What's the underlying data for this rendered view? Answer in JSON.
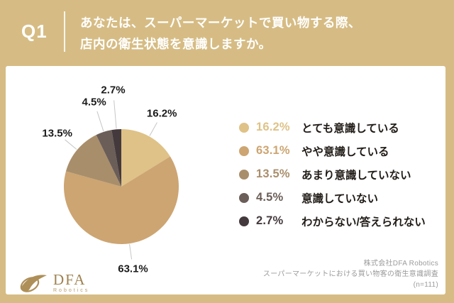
{
  "header": {
    "question_number": "Q1",
    "question_line1": "あなたは、スーパーマーケットで買い物する際、",
    "question_line2": "店内の衛生状態を意識しますか。"
  },
  "chart_data": {
    "type": "pie",
    "title": "あなたは、スーパーマーケットで買い物する際、店内の衛生状態を意識しますか。",
    "labels": [
      "とても意識している",
      "やや意識している",
      "あまり意識していない",
      "意識していない",
      "わからない/答えられない"
    ],
    "values": [
      16.2,
      63.1,
      13.5,
      4.5,
      2.7
    ],
    "value_labels": [
      "16.2%",
      "63.1%",
      "13.5%",
      "4.5%",
      "2.7%"
    ],
    "colors": [
      "#DFC287",
      "#CDA572",
      "#A98E6B",
      "#6B5E58",
      "#44393C"
    ],
    "start_angle_deg": 0,
    "direction": "clockwise",
    "legend_position": "right",
    "outside_labels": true
  },
  "footer": {
    "logo_text": "DFA",
    "logo_subtext": "Robotics",
    "source_line1": "株式会社DFA Robotics",
    "source_line2": "スーパーマーケットにおける買い物客の衛生意識調査",
    "source_line3": "(n=111)"
  },
  "icons": {
    "logo_mark": "dfa-swoosh-logo"
  },
  "colors": {
    "background_gold": "#D6BC84",
    "card_background": "#FFFFFF",
    "header_text": "#FFFFFF",
    "legend_label_text": "#211C18",
    "pie_label_text": "#1B1B1B",
    "leader_line": "#C6C6C6",
    "source_text": "#9B9B9B",
    "logo_gold": "#9E8250"
  }
}
